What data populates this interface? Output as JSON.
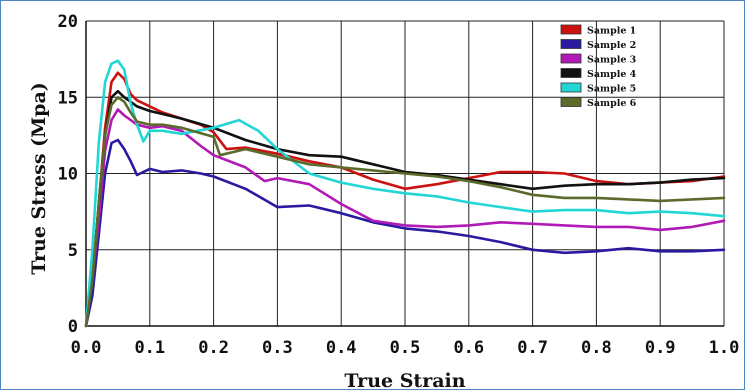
{
  "chart_data": {
    "type": "line",
    "title": "",
    "xlabel": "True Strain",
    "ylabel": "True Stress (Mpa)",
    "xlim": [
      0.0,
      1.0
    ],
    "ylim": [
      0,
      20
    ],
    "x_ticks": [
      "0.0",
      "0.1",
      "0.2",
      "0.3",
      "0.4",
      "0.5",
      "0.6",
      "0.7",
      "0.8",
      "0.9",
      "1.0"
    ],
    "y_ticks": [
      "0",
      "5",
      "10",
      "15",
      "20"
    ],
    "grid": true,
    "legend_position": "top-right",
    "series": [
      {
        "name": "Sample 1",
        "color": "#cc1111",
        "points": [
          [
            0.0,
            0
          ],
          [
            0.01,
            3
          ],
          [
            0.02,
            8
          ],
          [
            0.03,
            13
          ],
          [
            0.04,
            16
          ],
          [
            0.05,
            16.6
          ],
          [
            0.06,
            16.2
          ],
          [
            0.07,
            15.2
          ],
          [
            0.08,
            14.8
          ],
          [
            0.1,
            14.4
          ],
          [
            0.12,
            14
          ],
          [
            0.15,
            13.6
          ],
          [
            0.18,
            13.2
          ],
          [
            0.2,
            12.7
          ],
          [
            0.22,
            11.6
          ],
          [
            0.25,
            11.7
          ],
          [
            0.3,
            11.3
          ],
          [
            0.35,
            10.8
          ],
          [
            0.4,
            10.4
          ],
          [
            0.45,
            9.6
          ],
          [
            0.5,
            9.0
          ],
          [
            0.55,
            9.3
          ],
          [
            0.6,
            9.7
          ],
          [
            0.65,
            10.1
          ],
          [
            0.7,
            10.1
          ],
          [
            0.75,
            10.0
          ],
          [
            0.8,
            9.5
          ],
          [
            0.85,
            9.3
          ],
          [
            0.9,
            9.4
          ],
          [
            0.95,
            9.5
          ],
          [
            1.0,
            9.8
          ]
        ]
      },
      {
        "name": "Sample 2",
        "color": "#2a1aa0",
        "points": [
          [
            0.0,
            0
          ],
          [
            0.01,
            2
          ],
          [
            0.02,
            6
          ],
          [
            0.03,
            10
          ],
          [
            0.04,
            12
          ],
          [
            0.05,
            12.2
          ],
          [
            0.06,
            11.6
          ],
          [
            0.07,
            10.8
          ],
          [
            0.08,
            9.9
          ],
          [
            0.1,
            10.3
          ],
          [
            0.12,
            10.1
          ],
          [
            0.15,
            10.2
          ],
          [
            0.18,
            10.0
          ],
          [
            0.2,
            9.8
          ],
          [
            0.25,
            9.0
          ],
          [
            0.3,
            7.8
          ],
          [
            0.35,
            7.9
          ],
          [
            0.4,
            7.4
          ],
          [
            0.45,
            6.8
          ],
          [
            0.5,
            6.4
          ],
          [
            0.55,
            6.2
          ],
          [
            0.6,
            5.9
          ],
          [
            0.65,
            5.5
          ],
          [
            0.7,
            5.0
          ],
          [
            0.75,
            4.8
          ],
          [
            0.8,
            4.9
          ],
          [
            0.85,
            5.1
          ],
          [
            0.9,
            4.9
          ],
          [
            0.95,
            4.9
          ],
          [
            1.0,
            5.0
          ]
        ]
      },
      {
        "name": "Sample 3",
        "color": "#b21ab5",
        "points": [
          [
            0.0,
            0
          ],
          [
            0.01,
            3
          ],
          [
            0.02,
            7
          ],
          [
            0.03,
            11.5
          ],
          [
            0.04,
            13.5
          ],
          [
            0.05,
            14.2
          ],
          [
            0.06,
            13.8
          ],
          [
            0.07,
            13.5
          ],
          [
            0.08,
            13.2
          ],
          [
            0.1,
            13.0
          ],
          [
            0.12,
            13.1
          ],
          [
            0.15,
            12.8
          ],
          [
            0.18,
            11.8
          ],
          [
            0.2,
            11.2
          ],
          [
            0.25,
            10.4
          ],
          [
            0.28,
            9.5
          ],
          [
            0.3,
            9.7
          ],
          [
            0.35,
            9.3
          ],
          [
            0.4,
            8.0
          ],
          [
            0.45,
            6.9
          ],
          [
            0.5,
            6.6
          ],
          [
            0.55,
            6.5
          ],
          [
            0.6,
            6.6
          ],
          [
            0.65,
            6.8
          ],
          [
            0.7,
            6.7
          ],
          [
            0.75,
            6.6
          ],
          [
            0.8,
            6.5
          ],
          [
            0.85,
            6.5
          ],
          [
            0.9,
            6.3
          ],
          [
            0.95,
            6.5
          ],
          [
            1.0,
            6.9
          ]
        ]
      },
      {
        "name": "Sample 4",
        "color": "#111111",
        "points": [
          [
            0.0,
            0
          ],
          [
            0.01,
            3
          ],
          [
            0.02,
            8
          ],
          [
            0.03,
            12.5
          ],
          [
            0.04,
            15
          ],
          [
            0.05,
            15.4
          ],
          [
            0.06,
            15.0
          ],
          [
            0.07,
            14.7
          ],
          [
            0.08,
            14.4
          ],
          [
            0.1,
            14.1
          ],
          [
            0.12,
            13.9
          ],
          [
            0.15,
            13.6
          ],
          [
            0.2,
            13.0
          ],
          [
            0.25,
            12.2
          ],
          [
            0.3,
            11.6
          ],
          [
            0.35,
            11.2
          ],
          [
            0.4,
            11.1
          ],
          [
            0.45,
            10.6
          ],
          [
            0.5,
            10.1
          ],
          [
            0.55,
            9.9
          ],
          [
            0.6,
            9.6
          ],
          [
            0.65,
            9.3
          ],
          [
            0.7,
            9.0
          ],
          [
            0.75,
            9.2
          ],
          [
            0.8,
            9.3
          ],
          [
            0.85,
            9.3
          ],
          [
            0.9,
            9.4
          ],
          [
            0.95,
            9.6
          ],
          [
            1.0,
            9.7
          ]
        ]
      },
      {
        "name": "Sample 5",
        "color": "#22d6d6",
        "points": [
          [
            0.0,
            0
          ],
          [
            0.01,
            5
          ],
          [
            0.02,
            12
          ],
          [
            0.03,
            16
          ],
          [
            0.04,
            17.2
          ],
          [
            0.05,
            17.4
          ],
          [
            0.06,
            16.8
          ],
          [
            0.07,
            14.6
          ],
          [
            0.08,
            13.2
          ],
          [
            0.09,
            12.1
          ],
          [
            0.1,
            12.8
          ],
          [
            0.12,
            12.8
          ],
          [
            0.15,
            12.6
          ],
          [
            0.2,
            13.0
          ],
          [
            0.24,
            13.5
          ],
          [
            0.27,
            12.8
          ],
          [
            0.3,
            11.6
          ],
          [
            0.35,
            10.0
          ],
          [
            0.4,
            9.4
          ],
          [
            0.45,
            9.0
          ],
          [
            0.5,
            8.7
          ],
          [
            0.55,
            8.5
          ],
          [
            0.6,
            8.1
          ],
          [
            0.65,
            7.8
          ],
          [
            0.7,
            7.5
          ],
          [
            0.75,
            7.6
          ],
          [
            0.8,
            7.6
          ],
          [
            0.85,
            7.4
          ],
          [
            0.9,
            7.5
          ],
          [
            0.95,
            7.4
          ],
          [
            1.0,
            7.2
          ]
        ]
      },
      {
        "name": "Sample 6",
        "color": "#5b6b2c",
        "points": [
          [
            0.0,
            0
          ],
          [
            0.01,
            3
          ],
          [
            0.02,
            8
          ],
          [
            0.03,
            12.5
          ],
          [
            0.04,
            14.5
          ],
          [
            0.05,
            15.0
          ],
          [
            0.06,
            14.7
          ],
          [
            0.07,
            14.0
          ],
          [
            0.08,
            13.4
          ],
          [
            0.1,
            13.2
          ],
          [
            0.12,
            13.2
          ],
          [
            0.15,
            13.0
          ],
          [
            0.2,
            12.4
          ],
          [
            0.21,
            11.2
          ],
          [
            0.25,
            11.6
          ],
          [
            0.3,
            11.1
          ],
          [
            0.35,
            10.6
          ],
          [
            0.4,
            10.4
          ],
          [
            0.45,
            10.2
          ],
          [
            0.5,
            10.0
          ],
          [
            0.55,
            9.8
          ],
          [
            0.6,
            9.5
          ],
          [
            0.65,
            9.1
          ],
          [
            0.7,
            8.6
          ],
          [
            0.75,
            8.4
          ],
          [
            0.8,
            8.4
          ],
          [
            0.85,
            8.3
          ],
          [
            0.9,
            8.2
          ],
          [
            0.95,
            8.3
          ],
          [
            1.0,
            8.4
          ]
        ]
      }
    ]
  }
}
